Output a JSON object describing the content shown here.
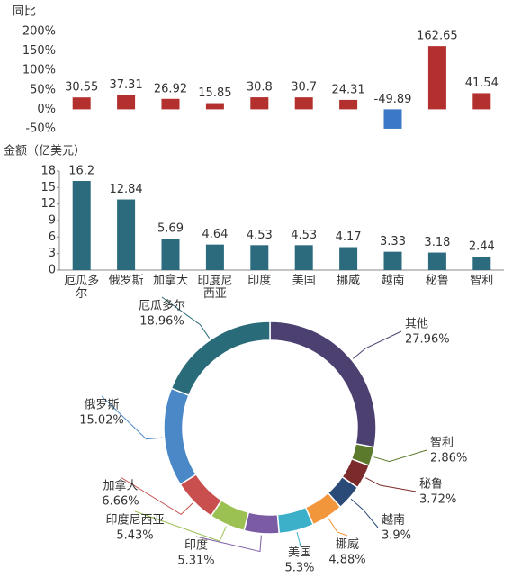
{
  "chart_data": [
    {
      "type": "bar",
      "ylabel": "同比",
      "values": [
        30.55,
        37.31,
        26.92,
        15.85,
        30.8,
        30.7,
        24.31,
        -49.89,
        162.65,
        41.54
      ],
      "color": "#b3302e",
      "negative_color": "#3b78c6",
      "ylim": [
        -50,
        200
      ],
      "yticks": [
        {
          "value": -50,
          "label": "-50%"
        },
        {
          "value": 0,
          "label": "0%"
        },
        {
          "value": 50,
          "label": "50%"
        },
        {
          "value": 100,
          "label": "100%"
        },
        {
          "value": 150,
          "label": "150%"
        },
        {
          "value": 200,
          "label": "200%"
        }
      ]
    },
    {
      "type": "bar",
      "ylabel": "金额（亿美元）",
      "categories": [
        "厄瓜多尔",
        "俄罗斯",
        "加拿大",
        "印度尼西亚",
        "印度",
        "美国",
        "挪威",
        "越南",
        "秘鲁",
        "智利"
      ],
      "values": [
        16.2,
        12.84,
        5.69,
        4.64,
        4.53,
        4.53,
        4.17,
        3.33,
        3.18,
        2.44
      ],
      "color": "#2b6b7d",
      "ylim": [
        0,
        18
      ],
      "yticks": [
        0,
        3,
        6,
        9,
        12,
        15,
        18
      ]
    },
    {
      "type": "donut",
      "categories": [
        "其他",
        "智利",
        "秘鲁",
        "越南",
        "挪威",
        "美国",
        "印度",
        "印度尼西亚",
        "加拿大",
        "俄罗斯",
        "厄瓜多尔"
      ],
      "values": [
        27.96,
        2.86,
        3.72,
        3.9,
        4.88,
        5.3,
        5.31,
        5.43,
        6.66,
        15.02,
        18.96
      ],
      "value_labels": [
        "27.96%",
        "2.86%",
        "3.72%",
        "3.9%",
        "4.88%",
        "5.3%",
        "5.31%",
        "5.43%",
        "6.66%",
        "15.02%",
        "18.96%"
      ],
      "colors": [
        "#4b4070",
        "#5b7a2b",
        "#7b2b2b",
        "#2a4a78",
        "#f2963c",
        "#3bb0c8",
        "#7b5ba3",
        "#9bc153",
        "#c94f4f",
        "#4a88c8",
        "#2a6b79"
      ]
    }
  ]
}
